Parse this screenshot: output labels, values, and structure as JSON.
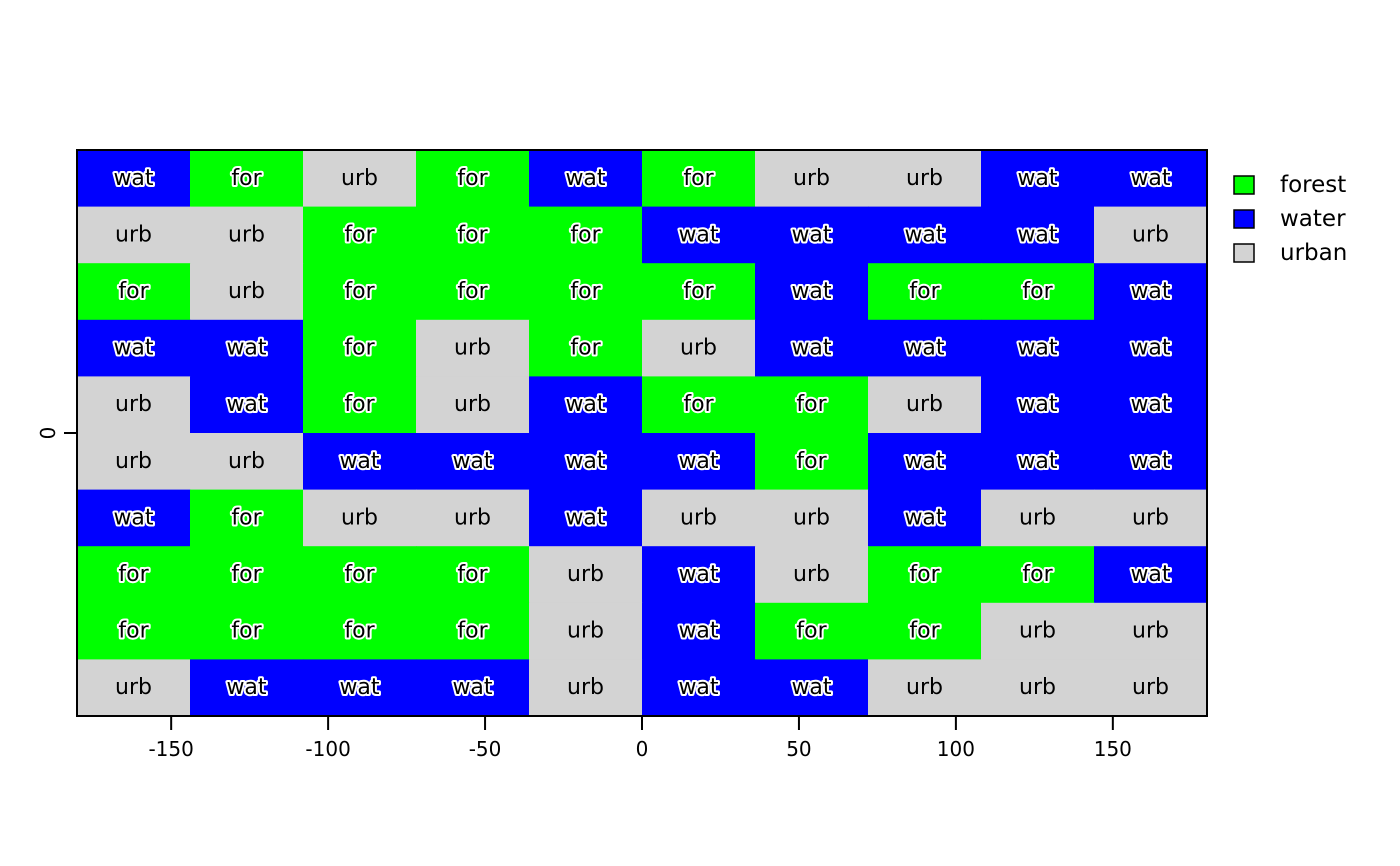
{
  "chart_data": {
    "type": "heatmap",
    "title": "",
    "xlabel": "",
    "ylabel": "",
    "xlim": [
      -180,
      180
    ],
    "ylim": [
      -90,
      90
    ],
    "x_ticks": [
      -150,
      -100,
      -50,
      0,
      50,
      100,
      150
    ],
    "x_tick_labels": [
      "-150",
      "-100",
      "-50",
      "0",
      "50",
      "100",
      "150"
    ],
    "y_ticks": [
      0
    ],
    "y_tick_labels": [
      "0"
    ],
    "ncol": 10,
    "nrow": 10,
    "grid": false,
    "legend_position": "right",
    "categories": [
      {
        "code": "for",
        "name": "forest",
        "color": "#00ff00"
      },
      {
        "code": "wat",
        "name": "water",
        "color": "#0000ff"
      },
      {
        "code": "urb",
        "name": "urban",
        "color": "#d3d3d3"
      }
    ],
    "cells": [
      [
        "wat",
        "for",
        "urb",
        "for",
        "wat",
        "for",
        "urb",
        "urb",
        "wat",
        "wat"
      ],
      [
        "urb",
        "urb",
        "for",
        "for",
        "for",
        "wat",
        "wat",
        "wat",
        "wat",
        "urb"
      ],
      [
        "for",
        "urb",
        "for",
        "for",
        "for",
        "for",
        "wat",
        "for",
        "for",
        "wat"
      ],
      [
        "wat",
        "wat",
        "for",
        "urb",
        "for",
        "urb",
        "wat",
        "wat",
        "wat",
        "wat"
      ],
      [
        "urb",
        "wat",
        "for",
        "urb",
        "wat",
        "for",
        "for",
        "urb",
        "wat",
        "wat"
      ],
      [
        "urb",
        "urb",
        "wat",
        "wat",
        "wat",
        "wat",
        "for",
        "wat",
        "wat",
        "wat"
      ],
      [
        "wat",
        "for",
        "urb",
        "urb",
        "wat",
        "urb",
        "urb",
        "wat",
        "urb",
        "urb"
      ],
      [
        "for",
        "for",
        "for",
        "for",
        "urb",
        "wat",
        "urb",
        "for",
        "for",
        "wat"
      ],
      [
        "for",
        "for",
        "for",
        "for",
        "urb",
        "wat",
        "for",
        "for",
        "urb",
        "urb"
      ],
      [
        "urb",
        "wat",
        "wat",
        "wat",
        "urb",
        "wat",
        "wat",
        "urb",
        "urb",
        "urb"
      ]
    ]
  }
}
